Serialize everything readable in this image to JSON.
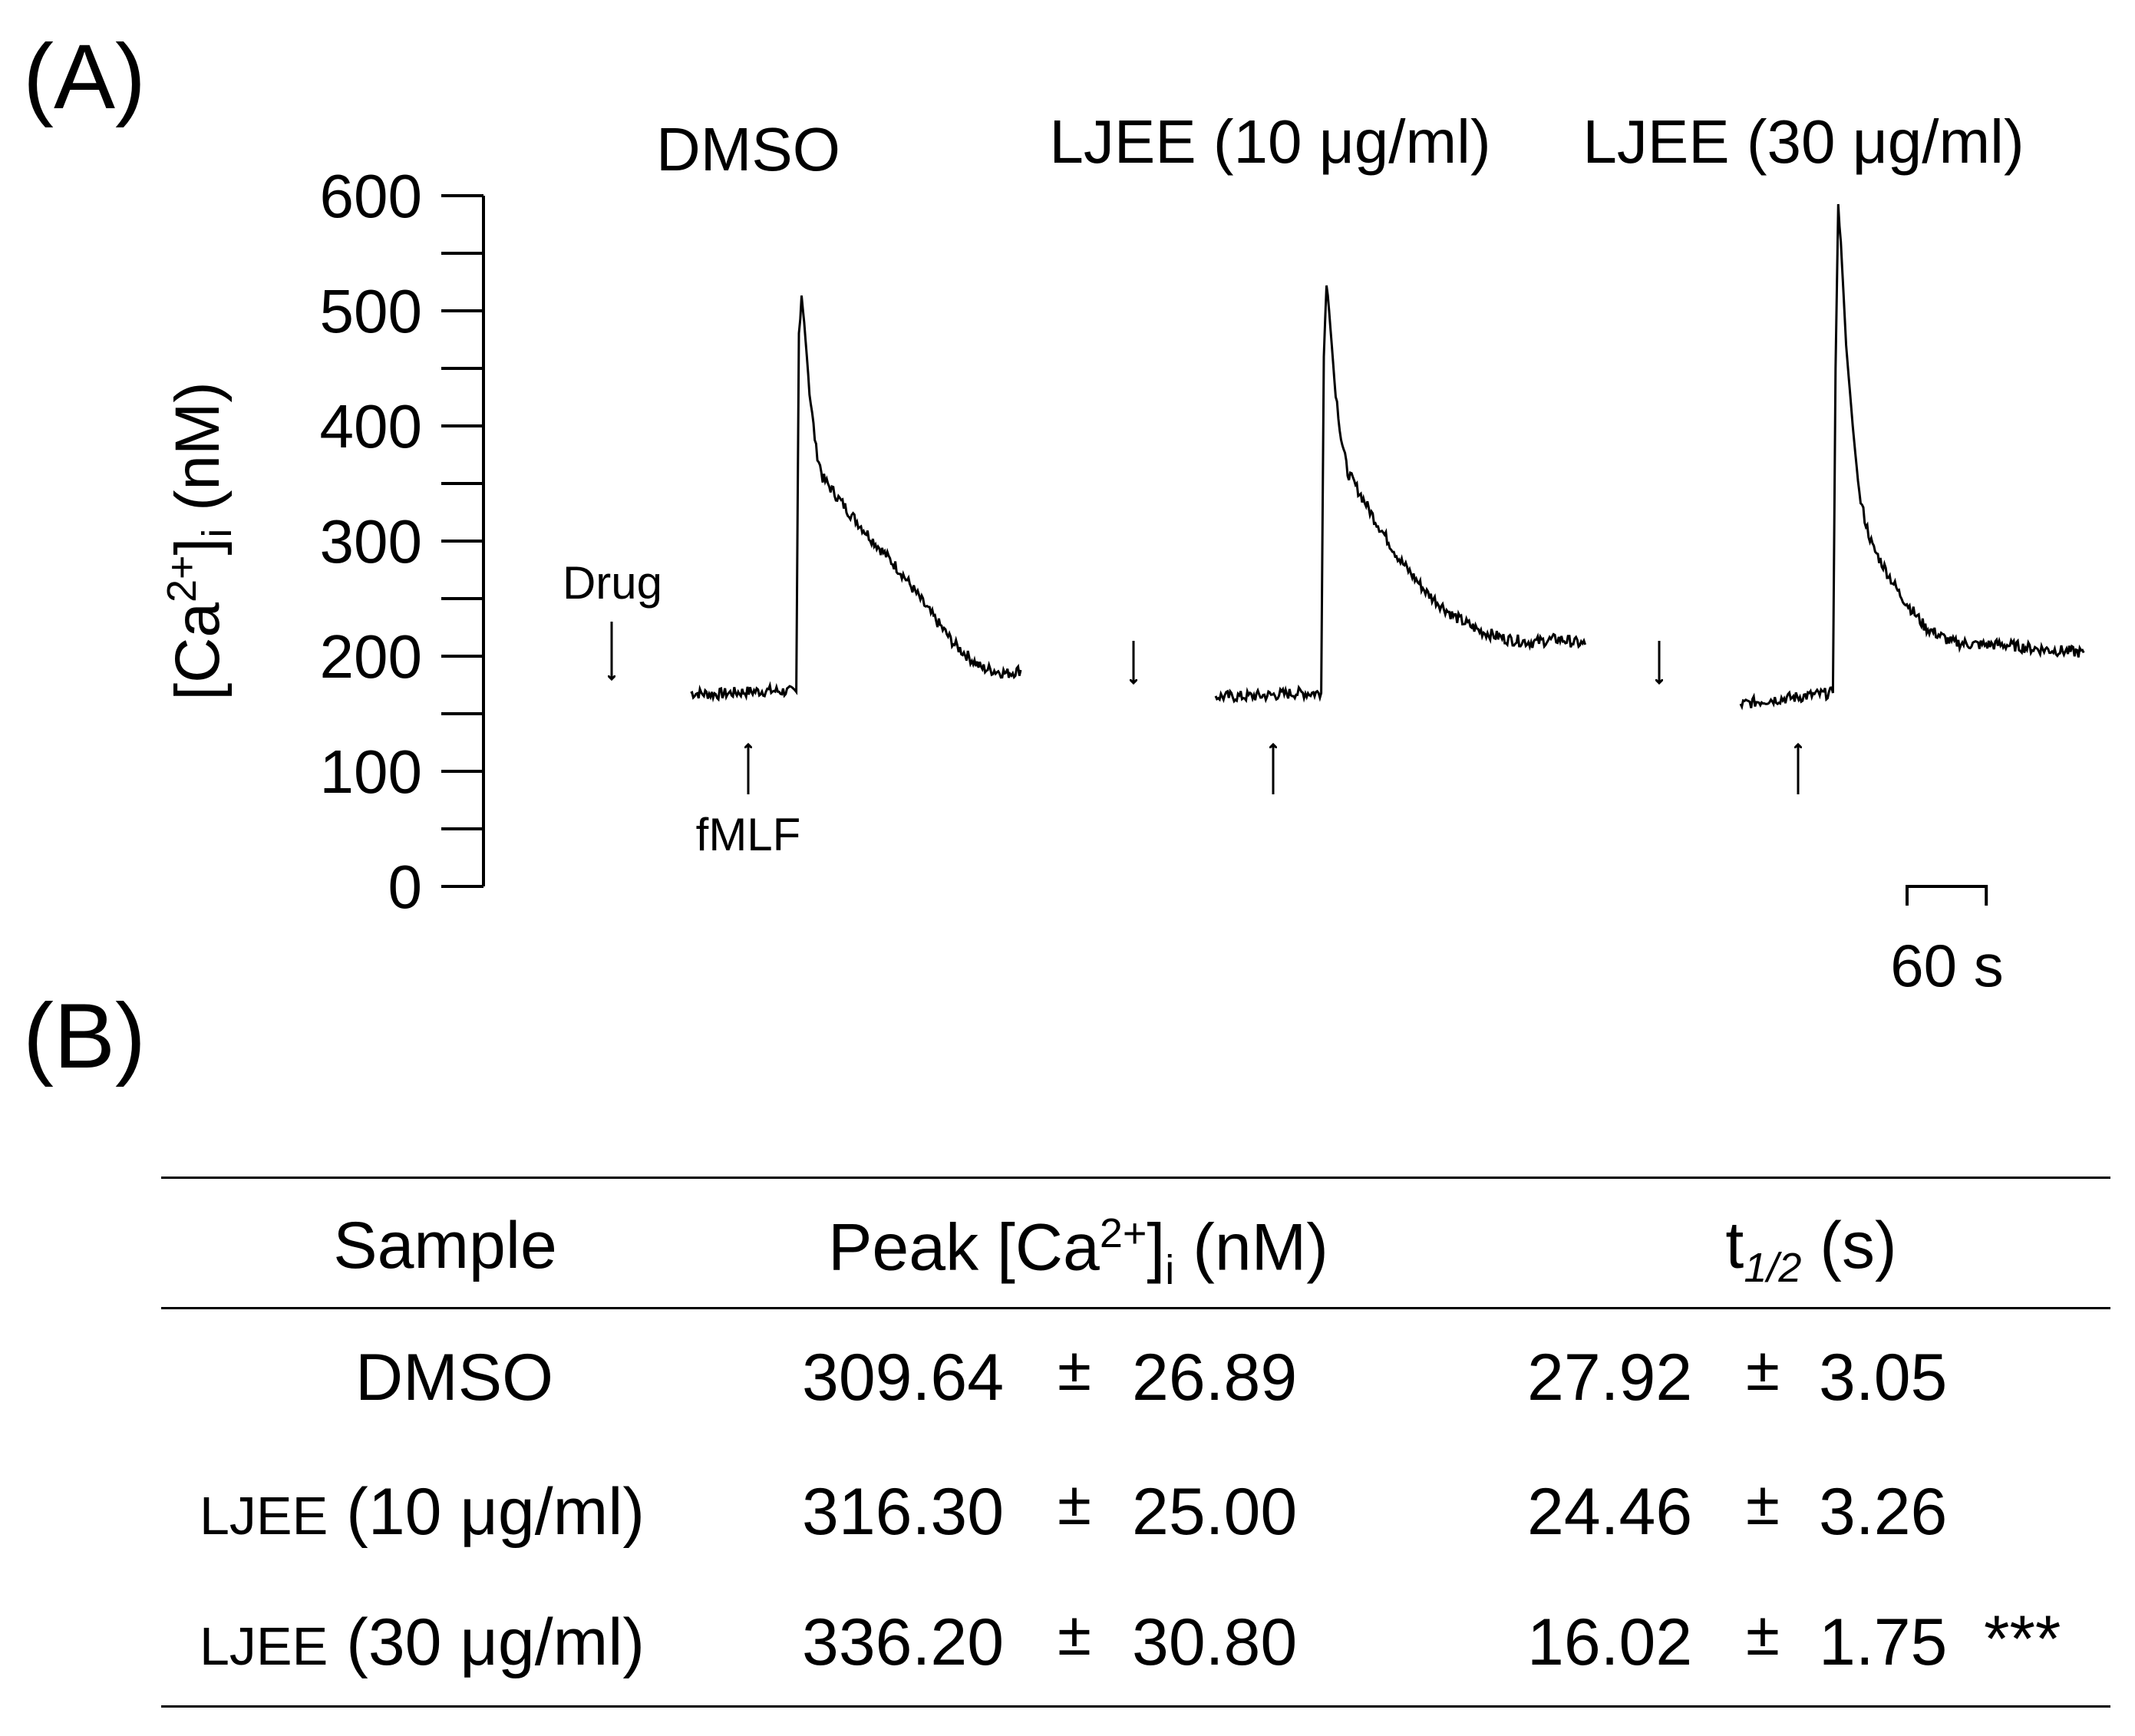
{
  "panel_a": {
    "label": "(A)"
  },
  "panel_b": {
    "label": "(B)"
  },
  "chart_data": {
    "type": "line",
    "ylabel": "[Ca2+]i (nM)",
    "ylabel_parts": {
      "pre": "[Ca",
      "sup": "2+",
      "mid": "]",
      "sub": "i",
      "post": " (nM)"
    },
    "ylim": [
      0,
      600
    ],
    "yticks": [
      0,
      100,
      200,
      300,
      400,
      500,
      600
    ],
    "ytick_labels": [
      "0",
      "100",
      "200",
      "300",
      "400",
      "500",
      "600"
    ],
    "time_units": "s",
    "scale_bar": {
      "value_s": 60,
      "label": "60 s"
    },
    "annotations": {
      "drug": "Drug",
      "fmlf": "fMLF"
    },
    "series": [
      {
        "name": "DMSO",
        "points": [
          [
            0,
            168
          ],
          [
            20,
            167
          ],
          [
            40,
            169
          ],
          [
            60,
            170
          ],
          [
            80,
            169
          ],
          [
            82,
            480
          ],
          [
            84,
            515
          ],
          [
            86,
            490
          ],
          [
            90,
            430
          ],
          [
            95,
            380
          ],
          [
            100,
            355
          ],
          [
            110,
            340
          ],
          [
            120,
            325
          ],
          [
            140,
            298
          ],
          [
            160,
            272
          ],
          [
            180,
            240
          ],
          [
            200,
            210
          ],
          [
            220,
            190
          ],
          [
            240,
            185
          ],
          [
            250,
            188
          ]
        ]
      },
      {
        "name": "LJEE (10 μg/ml)",
        "points": [
          [
            0,
            165
          ],
          [
            20,
            165
          ],
          [
            40,
            166
          ],
          [
            60,
            168
          ],
          [
            80,
            168
          ],
          [
            82,
            460
          ],
          [
            84,
            527
          ],
          [
            86,
            500
          ],
          [
            90,
            440
          ],
          [
            95,
            390
          ],
          [
            100,
            360
          ],
          [
            120,
            320
          ],
          [
            140,
            283
          ],
          [
            160,
            255
          ],
          [
            180,
            235
          ],
          [
            200,
            222
          ],
          [
            220,
            215
          ],
          [
            240,
            212
          ],
          [
            260,
            215
          ],
          [
            280,
            210
          ]
        ]
      },
      {
        "name": "LJEE (30 μg/ml)",
        "points": [
          [
            0,
            158
          ],
          [
            20,
            162
          ],
          [
            40,
            164
          ],
          [
            60,
            167
          ],
          [
            70,
            168
          ],
          [
            72,
            450
          ],
          [
            74,
            595
          ],
          [
            76,
            560
          ],
          [
            80,
            470
          ],
          [
            85,
            400
          ],
          [
            90,
            340
          ],
          [
            95,
            315
          ],
          [
            100,
            295
          ],
          [
            120,
            255
          ],
          [
            140,
            225
          ],
          [
            160,
            212
          ],
          [
            180,
            210
          ],
          [
            200,
            210
          ],
          [
            220,
            207
          ],
          [
            240,
            205
          ],
          [
            260,
            203
          ]
        ]
      }
    ]
  },
  "table": {
    "headers": {
      "sample": "Sample",
      "peak": {
        "pre": "Peak [Ca",
        "sup": "2+",
        "mid": "]",
        "sub": "i",
        "post": " (nM)"
      },
      "thalf": {
        "pre": "t",
        "sub": "1/2",
        "post": " (s)"
      }
    },
    "rows": [
      {
        "sample_prefix": "",
        "sample_main": "DMSO",
        "peak_mean": "309.64",
        "pm": "±",
        "peak_sem": "26.89",
        "t_mean": "27.92",
        "t_sem": "3.05",
        "sig": ""
      },
      {
        "sample_prefix": "LJEE",
        "sample_main": " (10 μg/ml)",
        "peak_mean": "316.30",
        "pm": "±",
        "peak_sem": "25.00",
        "t_mean": "24.46",
        "t_sem": "3.26",
        "sig": ""
      },
      {
        "sample_prefix": "LJEE",
        "sample_main": " (30 μg/ml)",
        "peak_mean": "336.20",
        "pm": "±",
        "peak_sem": "30.80",
        "t_mean": "16.02",
        "t_sem": "1.75",
        "sig": "***"
      }
    ]
  }
}
